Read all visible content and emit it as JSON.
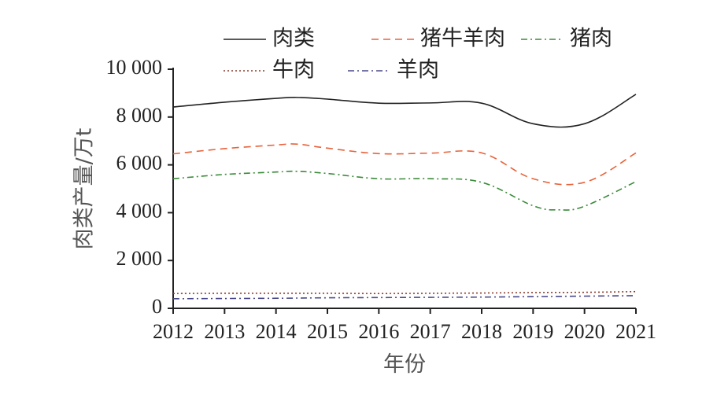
{
  "chart_data": {
    "type": "line",
    "xlabel": "年份",
    "ylabel": "肉类产量/万t",
    "ylim": [
      0,
      10000
    ],
    "yticks": [
      0,
      2000,
      4000,
      6000,
      8000,
      10000
    ],
    "ytick_labels": [
      "0",
      "2 000",
      "4 000",
      "6 000",
      "8 000",
      "10 000"
    ],
    "xlim": [
      2012,
      2021
    ],
    "xticks": [
      2012,
      2013,
      2014,
      2015,
      2016,
      2017,
      2018,
      2019,
      2020,
      2021
    ],
    "xtick_labels": [
      "2012",
      "2013",
      "2014",
      "2015",
      "2016",
      "2017",
      "2018",
      "2019",
      "2020",
      "2021"
    ],
    "legend_position": "top",
    "series": [
      {
        "name": "肉类",
        "color": "#222222",
        "style": "solid",
        "x": [
          2012,
          2013,
          2014,
          2014.4,
          2015,
          2016,
          2017,
          2018,
          2019,
          2020,
          2021
        ],
        "values": [
          8420,
          8620,
          8780,
          8820,
          8750,
          8580,
          8590,
          8580,
          7720,
          7720,
          8950
        ]
      },
      {
        "name": "猪牛羊肉",
        "color": "#e8623a",
        "style": "dashed",
        "x": [
          2012,
          2013,
          2014,
          2014.4,
          2015,
          2016,
          2017,
          2018,
          2019,
          2020,
          2021
        ],
        "values": [
          6460,
          6680,
          6830,
          6870,
          6700,
          6470,
          6490,
          6500,
          5420,
          5270,
          6500
        ]
      },
      {
        "name": "猪肉",
        "color": "#3a8a3a",
        "style": "dashdot",
        "x": [
          2012,
          2013,
          2014,
          2014.4,
          2015,
          2016,
          2017,
          2018,
          2019,
          2019.5,
          2020,
          2021
        ],
        "values": [
          5420,
          5600,
          5700,
          5730,
          5640,
          5420,
          5420,
          5270,
          4290,
          4120,
          4270,
          5300
        ]
      },
      {
        "name": "牛肉",
        "color": "#8b3a2a",
        "style": "dotted",
        "x": [
          2012,
          2013,
          2014,
          2015,
          2016,
          2017,
          2018,
          2019,
          2020,
          2021
        ],
        "values": [
          620,
          630,
          630,
          630,
          620,
          630,
          640,
          660,
          670,
          700
        ]
      },
      {
        "name": "羊肉",
        "color": "#4a4a8a",
        "style": "dashdot",
        "x": [
          2012,
          2013,
          2014,
          2015,
          2016,
          2017,
          2018,
          2019,
          2020,
          2021
        ],
        "values": [
          400,
          410,
          420,
          440,
          450,
          460,
          470,
          490,
          510,
          530
        ]
      }
    ]
  }
}
